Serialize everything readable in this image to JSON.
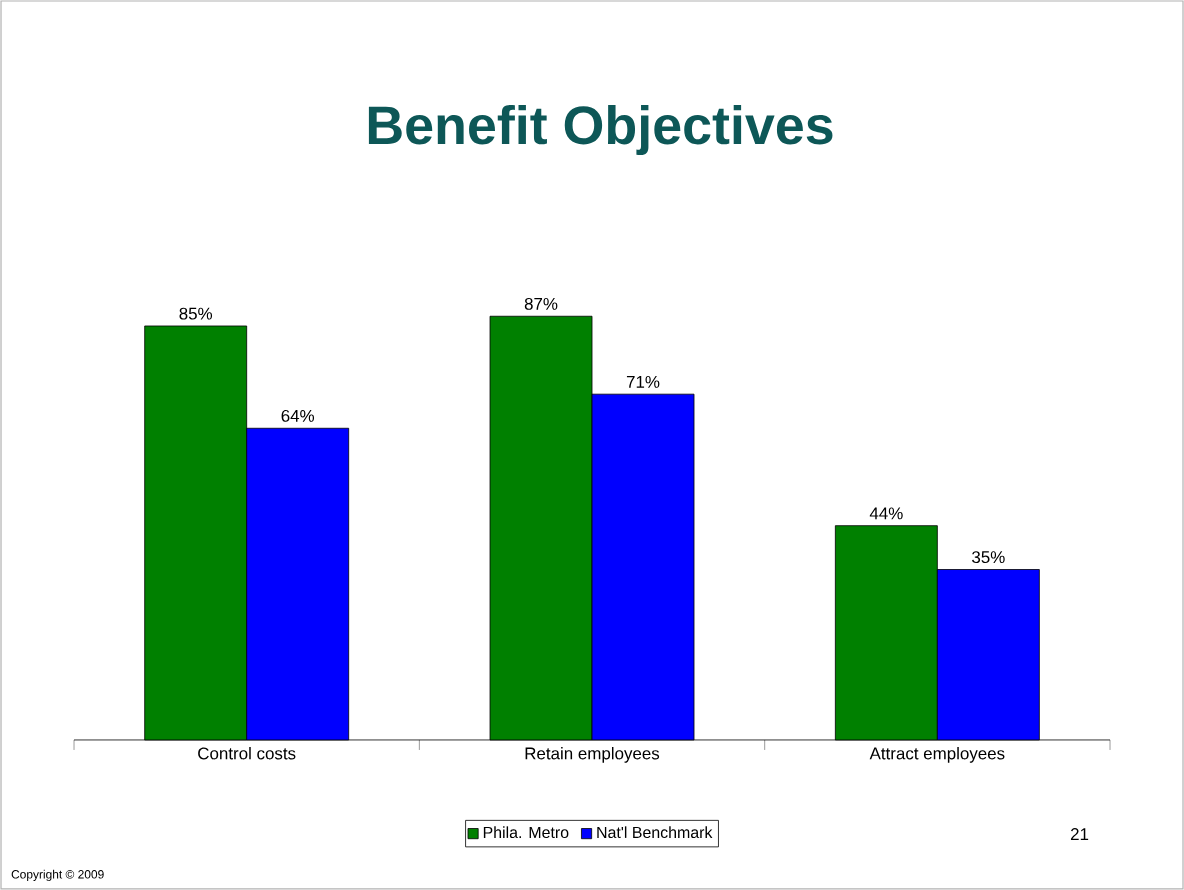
{
  "chart_data": {
    "type": "bar",
    "title": "Benefit Objectives",
    "categories": [
      "Control costs",
      "Retain employees",
      "Attract employees"
    ],
    "series": [
      {
        "name": "Phila. Metro",
        "color": "#008000",
        "values": [
          85,
          87,
          44
        ],
        "value_labels": [
          "85%",
          "87%",
          "44%"
        ]
      },
      {
        "name": "Nat'l Benchmark",
        "color": "#0000ff",
        "values": [
          64,
          71,
          35
        ],
        "value_labels": [
          "64%",
          "71%",
          "35%"
        ]
      }
    ],
    "legend": "bottom",
    "annotations": [
      "21",
      "Copyright © 2009"
    ]
  }
}
